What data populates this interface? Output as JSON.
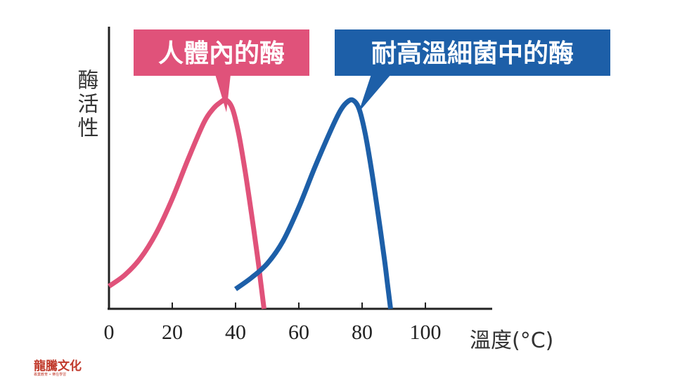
{
  "chart_data": {
    "type": "line",
    "xlabel": "溫度(°C)",
    "ylabel": "酶活性",
    "xlim": [
      0,
      120
    ],
    "ylim": [
      0,
      1
    ],
    "x_ticks": [
      0,
      20,
      40,
      60,
      80,
      100
    ],
    "series": [
      {
        "name": "人體內的酶",
        "color": "#e0527a",
        "x": [
          0,
          5,
          10,
          15,
          20,
          25,
          30,
          33,
          35,
          37,
          39,
          41,
          43,
          45,
          47,
          48,
          49
        ],
        "y": [
          0.08,
          0.12,
          0.18,
          0.27,
          0.39,
          0.53,
          0.66,
          0.71,
          0.73,
          0.74,
          0.71,
          0.62,
          0.49,
          0.34,
          0.18,
          0.09,
          0
        ]
      },
      {
        "name": "耐高溫細菌中的酶",
        "color": "#1d5fa8",
        "x": [
          40,
          45,
          50,
          55,
          60,
          65,
          70,
          73,
          75,
          77,
          79,
          81,
          83,
          85,
          87,
          88,
          89
        ],
        "y": [
          0.07,
          0.11,
          0.16,
          0.24,
          0.36,
          0.5,
          0.63,
          0.7,
          0.73,
          0.74,
          0.71,
          0.62,
          0.49,
          0.34,
          0.18,
          0.09,
          0
        ]
      }
    ]
  },
  "callouts": {
    "human": "人體內的酶",
    "bacteria": "耐高溫細菌中的酶"
  },
  "logo": {
    "name": "龍騰文化",
    "tagline": "專業教育 • 樂在學習"
  }
}
